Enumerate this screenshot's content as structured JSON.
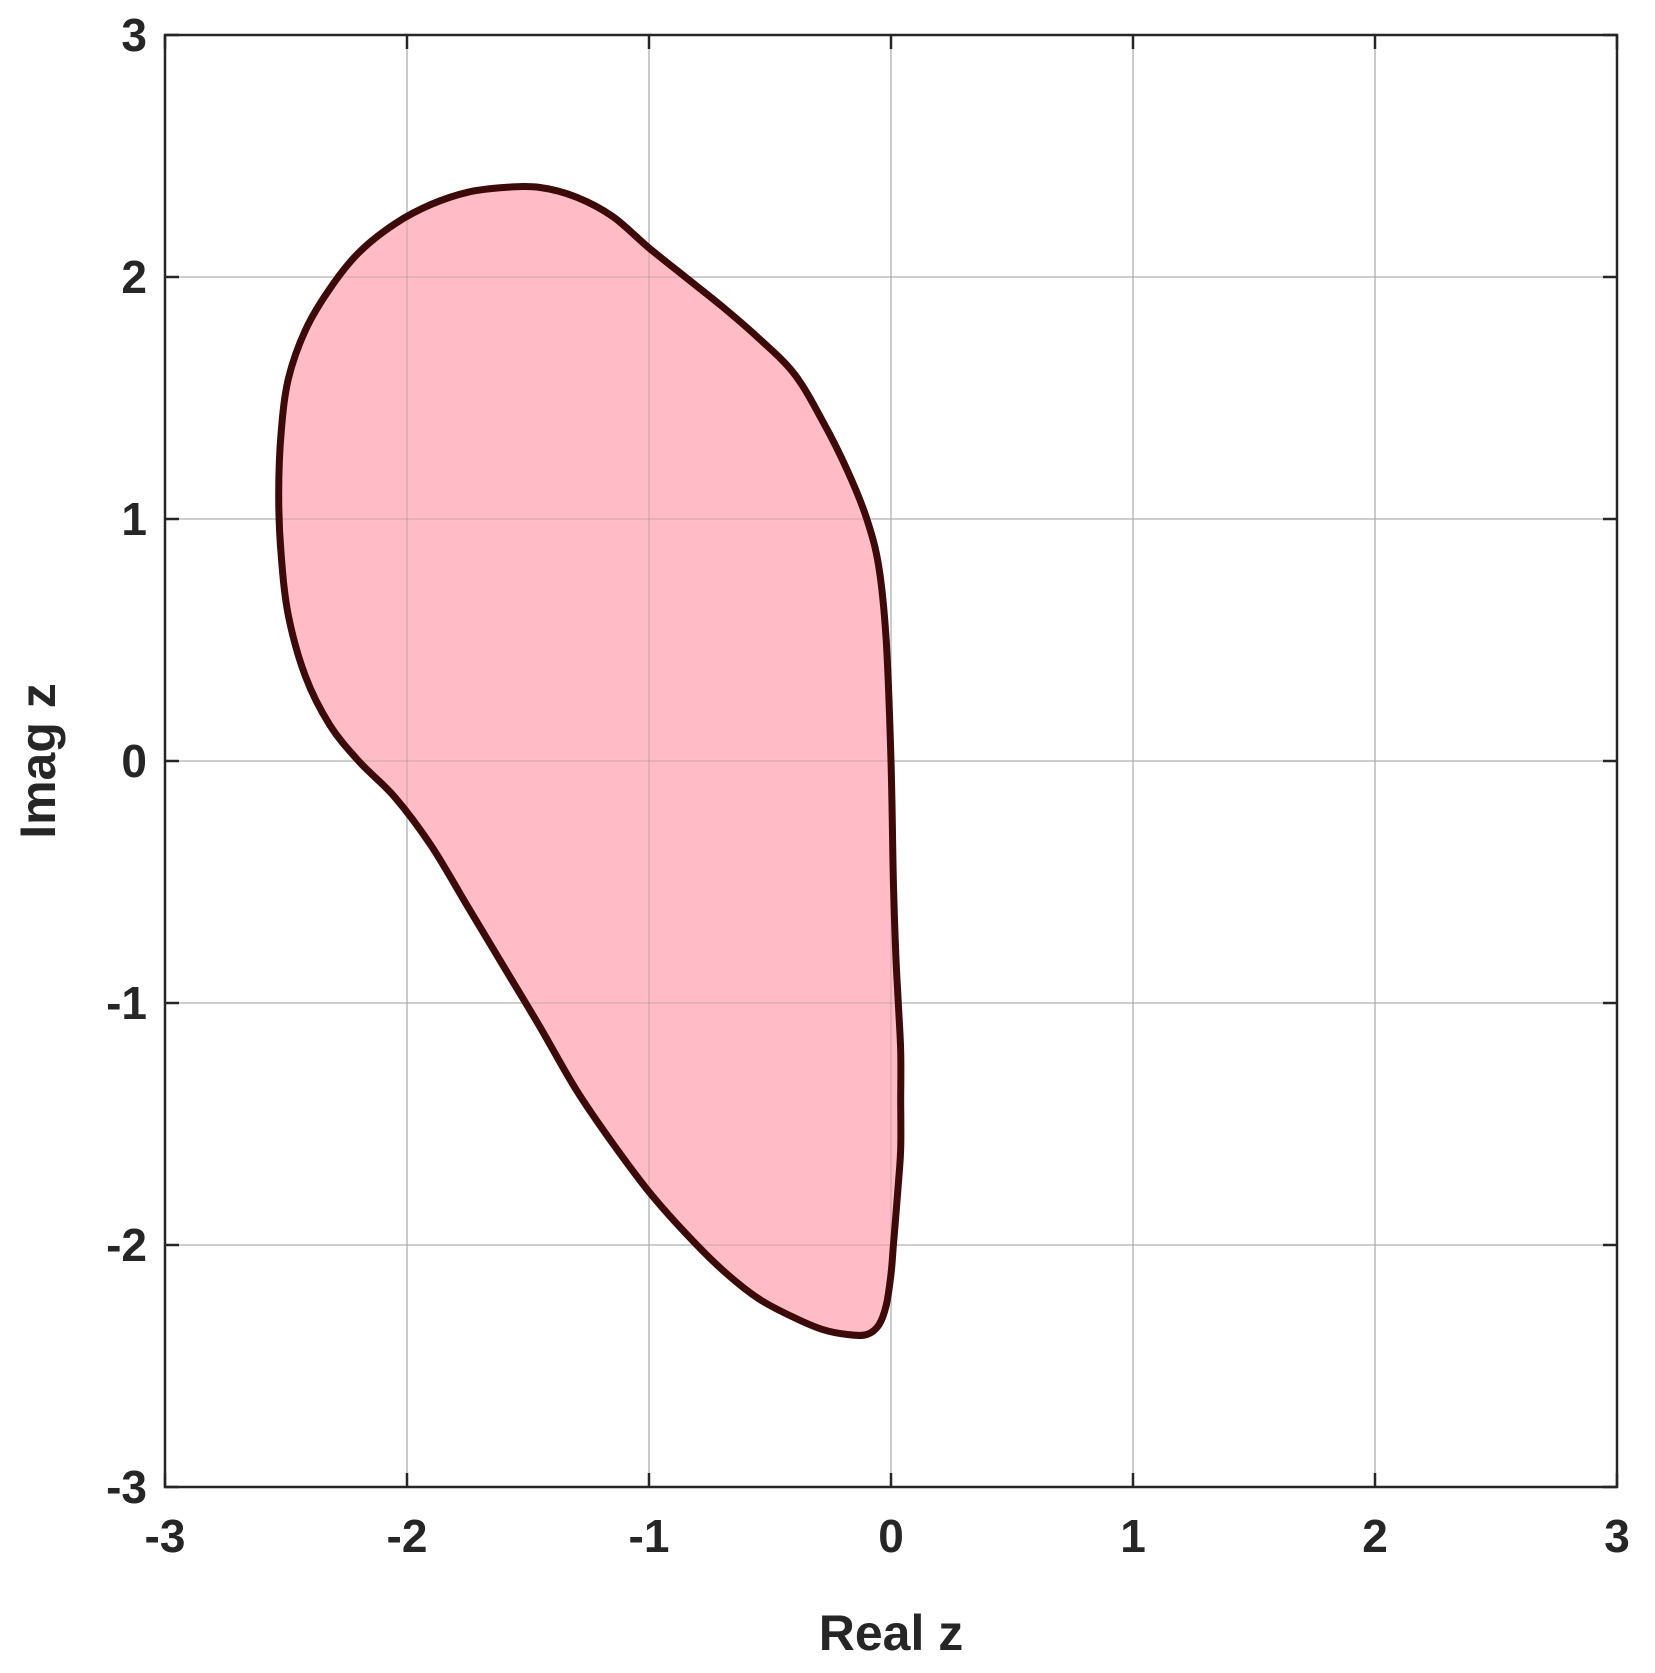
{
  "chart_data": {
    "type": "area",
    "title": "",
    "xlabel": "Real z",
    "ylabel": "Imag z",
    "xlim": [
      -3,
      3
    ],
    "ylim": [
      -3,
      3
    ],
    "xticks": [
      -3,
      -2,
      -1,
      0,
      1,
      2,
      3
    ],
    "yticks": [
      -3,
      -2,
      -1,
      0,
      1,
      2,
      3
    ],
    "xtick_labels": [
      "-3",
      "-2",
      "-1",
      "0",
      "1",
      "2",
      "3"
    ],
    "ytick_labels": [
      "-3",
      "-2",
      "-1",
      "0",
      "1",
      "2",
      "3"
    ],
    "grid": true,
    "series": [
      {
        "fill_color": "#ffbcc6",
        "line_color": "#3d0a0a",
        "x": [
          0.04,
          0.04,
          0.03,
          0.02,
          0.01,
          0.0,
          -0.02,
          -0.05,
          -0.1,
          -0.18,
          -0.28,
          -0.4,
          -0.55,
          -0.7,
          -0.85,
          -1.0,
          -1.15,
          -1.3,
          -1.45,
          -1.6,
          -1.75,
          -1.9,
          -2.05,
          -2.2,
          -2.32,
          -2.42,
          -2.49,
          -2.52,
          -2.53,
          -2.52,
          -2.49,
          -2.42,
          -2.32,
          -2.2,
          -2.05,
          -1.9,
          -1.75,
          -1.6,
          -1.45,
          -1.3,
          -1.15,
          -1.0,
          -0.85,
          -0.7,
          -0.55,
          -0.4,
          -0.28,
          -0.18,
          -0.1,
          -0.05,
          -0.02,
          0.0,
          0.01,
          0.02,
          0.03,
          0.04,
          0.04
        ],
        "y": [
          -1.4,
          -1.2,
          -1.0,
          -0.8,
          -0.5,
          0.0,
          0.5,
          0.8,
          1.0,
          1.2,
          1.4,
          1.6,
          1.75,
          1.88,
          2.0,
          2.12,
          2.25,
          2.33,
          2.37,
          2.37,
          2.35,
          2.3,
          2.22,
          2.1,
          1.95,
          1.78,
          1.58,
          1.36,
          1.1,
          0.85,
          0.6,
          0.35,
          0.15,
          0.0,
          -0.15,
          -0.35,
          -0.6,
          -0.85,
          -1.1,
          -1.36,
          -1.58,
          -1.78,
          -1.95,
          -2.1,
          -2.22,
          -2.3,
          -2.35,
          -2.37,
          -2.37,
          -2.33,
          -2.25,
          -2.12,
          -2.0,
          -1.88,
          -1.75,
          -1.6,
          -1.4
        ]
      }
    ]
  }
}
